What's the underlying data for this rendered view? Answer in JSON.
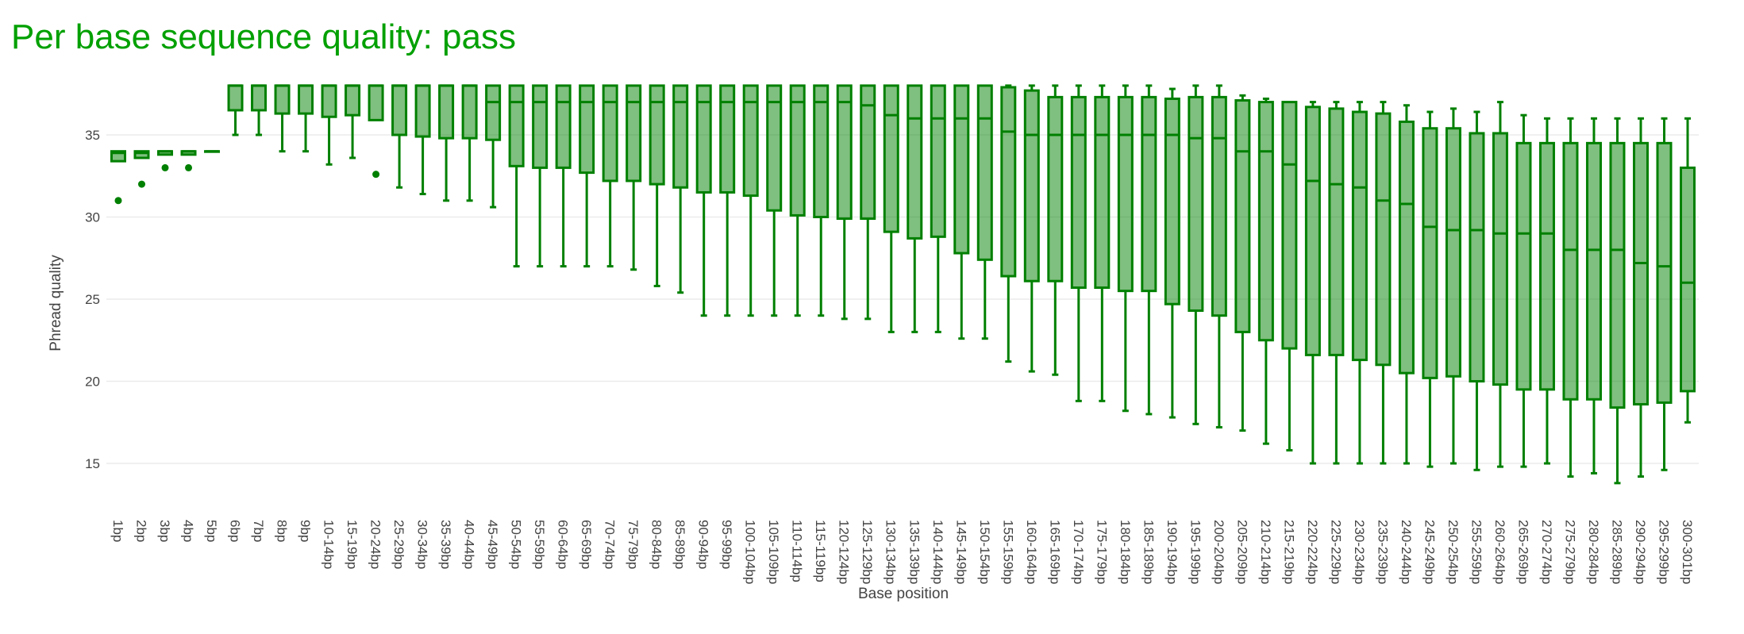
{
  "chart_data": {
    "type": "box",
    "title": "Per base sequence quality: pass",
    "xlabel": "Base position",
    "ylabel": "Phread quality",
    "ylim": [
      12.5,
      39
    ],
    "yticks": [
      15,
      20,
      25,
      30,
      35
    ],
    "grid": true,
    "colors": {
      "title": "#00a000",
      "box_fill": "rgba(0,128,0,0.5)",
      "box_line": "#008000"
    },
    "categories": [
      "1bp",
      "2bp",
      "3bp",
      "4bp",
      "5bp",
      "6bp",
      "7bp",
      "8bp",
      "9bp",
      "10-14bp",
      "15-19bp",
      "20-24bp",
      "25-29bp",
      "30-34bp",
      "35-39bp",
      "40-44bp",
      "45-49bp",
      "50-54bp",
      "55-59bp",
      "60-64bp",
      "65-69bp",
      "70-74bp",
      "75-79bp",
      "80-84bp",
      "85-89bp",
      "90-94bp",
      "95-99bp",
      "100-104bp",
      "105-109bp",
      "110-114bp",
      "115-119bp",
      "120-124bp",
      "125-129bp",
      "130-134bp",
      "135-139bp",
      "140-144bp",
      "145-149bp",
      "150-154bp",
      "155-159bp",
      "160-164bp",
      "165-169bp",
      "170-174bp",
      "175-179bp",
      "180-184bp",
      "185-189bp",
      "190-194bp",
      "195-199bp",
      "200-204bp",
      "205-209bp",
      "210-214bp",
      "215-219bp",
      "220-224bp",
      "225-229bp",
      "230-234bp",
      "235-239bp",
      "240-244bp",
      "245-249bp",
      "250-254bp",
      "255-259bp",
      "260-264bp",
      "265-269bp",
      "270-274bp",
      "275-279bp",
      "280-284bp",
      "285-289bp",
      "290-294bp",
      "295-299bp",
      "300-301bp"
    ],
    "boxes_note": "each entry: [lower_whisker, q1, median, q3, upper_whisker]",
    "boxes": [
      [
        33.4,
        33.4,
        33.9,
        34,
        34
      ],
      [
        33.6,
        33.6,
        33.9,
        34,
        34
      ],
      [
        33.8,
        33.8,
        34,
        34,
        34
      ],
      [
        33.8,
        33.8,
        34,
        34,
        34
      ],
      [
        34,
        34,
        34,
        34,
        34
      ],
      [
        35,
        36.5,
        38,
        38,
        38
      ],
      [
        35,
        36.5,
        38,
        38,
        38
      ],
      [
        34,
        36.3,
        38,
        38,
        38
      ],
      [
        34,
        36.3,
        38,
        38,
        38
      ],
      [
        33.2,
        36.1,
        38,
        38,
        38
      ],
      [
        33.6,
        36.2,
        38,
        38,
        38
      ],
      [
        35.9,
        35.9,
        38,
        38,
        38
      ],
      [
        31.8,
        35,
        38,
        38,
        38
      ],
      [
        31.4,
        34.9,
        38,
        38,
        38
      ],
      [
        31,
        34.8,
        38,
        38,
        38
      ],
      [
        31,
        34.8,
        38,
        38,
        38
      ],
      [
        30.6,
        34.7,
        37,
        38,
        38
      ],
      [
        27,
        33.1,
        37,
        38,
        38
      ],
      [
        27,
        33,
        37,
        38,
        38
      ],
      [
        27,
        33,
        37,
        38,
        38
      ],
      [
        27,
        32.7,
        37,
        38,
        38
      ],
      [
        27,
        32.2,
        37,
        38,
        38
      ],
      [
        26.8,
        32.2,
        37,
        38,
        38
      ],
      [
        25.8,
        32,
        37,
        38,
        38
      ],
      [
        25.4,
        31.8,
        37,
        38,
        38
      ],
      [
        24,
        31.5,
        37,
        38,
        38
      ],
      [
        24,
        31.5,
        37,
        38,
        38
      ],
      [
        24,
        31.3,
        37,
        38,
        38
      ],
      [
        24,
        30.4,
        37,
        38,
        38
      ],
      [
        24,
        30.1,
        37,
        38,
        38
      ],
      [
        24,
        30,
        37,
        38,
        38
      ],
      [
        23.8,
        29.9,
        37,
        38,
        38
      ],
      [
        23.8,
        29.9,
        36.8,
        38,
        38
      ],
      [
        23,
        29.1,
        36.2,
        38,
        38
      ],
      [
        23,
        28.7,
        36,
        38,
        38
      ],
      [
        23,
        28.8,
        36,
        38,
        38
      ],
      [
        22.6,
        27.8,
        36,
        38,
        38
      ],
      [
        22.6,
        27.4,
        36,
        38,
        38
      ],
      [
        21.2,
        26.4,
        35.2,
        37.9,
        38
      ],
      [
        20.6,
        26.1,
        35,
        37.7,
        38
      ],
      [
        20.4,
        26.1,
        35,
        37.3,
        38
      ],
      [
        18.8,
        25.7,
        35,
        37.3,
        38
      ],
      [
        18.8,
        25.7,
        35,
        37.3,
        38
      ],
      [
        18.2,
        25.5,
        35,
        37.3,
        38
      ],
      [
        18,
        25.5,
        35,
        37.3,
        38
      ],
      [
        17.8,
        24.7,
        35,
        37.2,
        37.8
      ],
      [
        17.4,
        24.3,
        34.8,
        37.3,
        38
      ],
      [
        17.2,
        24,
        34.8,
        37.3,
        38
      ],
      [
        17,
        23,
        34,
        37.1,
        37.4
      ],
      [
        16.2,
        22.5,
        34,
        37,
        37.2
      ],
      [
        15.8,
        22,
        33.2,
        37,
        37
      ],
      [
        15,
        21.6,
        32.2,
        36.7,
        37
      ],
      [
        15,
        21.6,
        32,
        36.6,
        37
      ],
      [
        15,
        21.3,
        31.8,
        36.4,
        37
      ],
      [
        15,
        21,
        31,
        36.3,
        37
      ],
      [
        15,
        20.5,
        30.8,
        35.8,
        36.8
      ],
      [
        14.8,
        20.2,
        29.4,
        35.4,
        36.4
      ],
      [
        15,
        20.3,
        29.2,
        35.4,
        36.6
      ],
      [
        14.6,
        20,
        29.2,
        35.1,
        36.4
      ],
      [
        14.8,
        19.8,
        29,
        35.1,
        37
      ],
      [
        14.8,
        19.5,
        29,
        34.5,
        36.2
      ],
      [
        15,
        19.5,
        29,
        34.5,
        36
      ],
      [
        14.2,
        18.9,
        28,
        34.5,
        36
      ],
      [
        14.4,
        18.9,
        28,
        34.5,
        36
      ],
      [
        13.8,
        18.4,
        28,
        34.5,
        36
      ],
      [
        14.2,
        18.6,
        27.2,
        34.5,
        36
      ],
      [
        14.6,
        18.7,
        27,
        34.5,
        36
      ],
      [
        17.5,
        19.4,
        26,
        33,
        36
      ]
    ],
    "outliers": [
      {
        "category": "1bp",
        "value": 31
      },
      {
        "category": "2bp",
        "value": 32
      },
      {
        "category": "3bp",
        "value": 33
      },
      {
        "category": "4bp",
        "value": 33
      },
      {
        "category": "20-24bp",
        "value": 32.6
      }
    ]
  }
}
